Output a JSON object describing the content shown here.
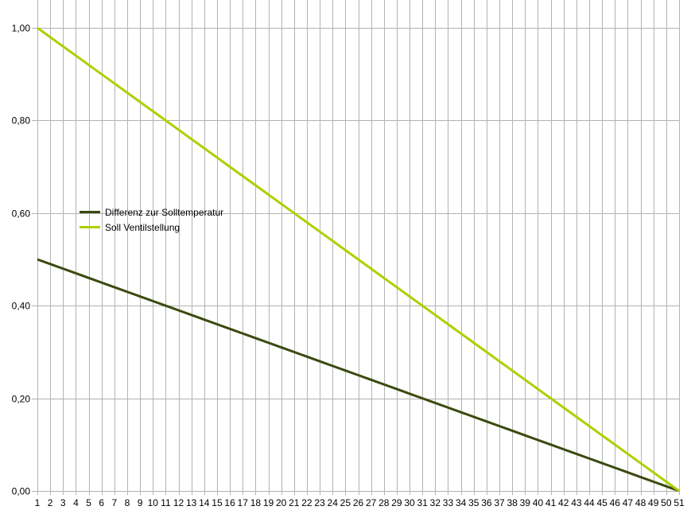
{
  "chart_data": {
    "type": "line",
    "x": [
      1,
      2,
      3,
      4,
      5,
      6,
      7,
      8,
      9,
      10,
      11,
      12,
      13,
      14,
      15,
      16,
      17,
      18,
      19,
      20,
      21,
      22,
      23,
      24,
      25,
      26,
      27,
      28,
      29,
      30,
      31,
      32,
      33,
      34,
      35,
      36,
      37,
      38,
      39,
      40,
      41,
      42,
      43,
      44,
      45,
      46,
      47,
      48,
      49,
      50,
      51
    ],
    "series": [
      {
        "name": "Differenz zur Solltemperatur",
        "color": "#3a4a0f",
        "values": [
          0.5,
          0.49,
          0.48,
          0.47,
          0.46,
          0.45,
          0.44,
          0.43,
          0.42,
          0.41,
          0.4,
          0.39,
          0.38,
          0.37,
          0.36,
          0.35,
          0.34,
          0.33,
          0.32,
          0.31,
          0.3,
          0.29,
          0.28,
          0.27,
          0.26,
          0.25,
          0.24,
          0.23,
          0.22,
          0.21,
          0.2,
          0.19,
          0.18,
          0.17,
          0.16,
          0.15,
          0.14,
          0.13,
          0.12,
          0.11,
          0.1,
          0.09,
          0.08,
          0.07,
          0.06,
          0.05,
          0.04,
          0.03,
          0.02,
          0.01,
          0.0
        ]
      },
      {
        "name": "Soll Ventilstellung",
        "color": "#aecf00",
        "values": [
          1.0,
          0.98,
          0.96,
          0.94,
          0.92,
          0.9,
          0.88,
          0.86,
          0.84,
          0.82,
          0.8,
          0.78,
          0.76,
          0.74,
          0.72,
          0.7,
          0.68,
          0.66,
          0.64,
          0.62,
          0.6,
          0.58,
          0.56,
          0.54,
          0.52,
          0.5,
          0.48,
          0.46,
          0.44,
          0.42,
          0.4,
          0.38,
          0.36,
          0.34,
          0.32,
          0.3,
          0.28,
          0.26,
          0.24,
          0.22,
          0.2,
          0.18,
          0.16,
          0.14,
          0.12,
          0.1,
          0.08,
          0.06,
          0.04,
          0.02,
          0.0
        ]
      }
    ],
    "ylim": [
      0,
      1
    ],
    "y_ticks": [
      0.0,
      0.2,
      0.4,
      0.6,
      0.8,
      1.0
    ],
    "y_tick_labels": [
      "0,00",
      "0,20",
      "0,40",
      "0,60",
      "0,80",
      "1,00"
    ],
    "grid": true,
    "grid_color": "#b3b3b3",
    "legend_position": "left-middle",
    "title": "",
    "xlabel": "",
    "ylabel": ""
  }
}
